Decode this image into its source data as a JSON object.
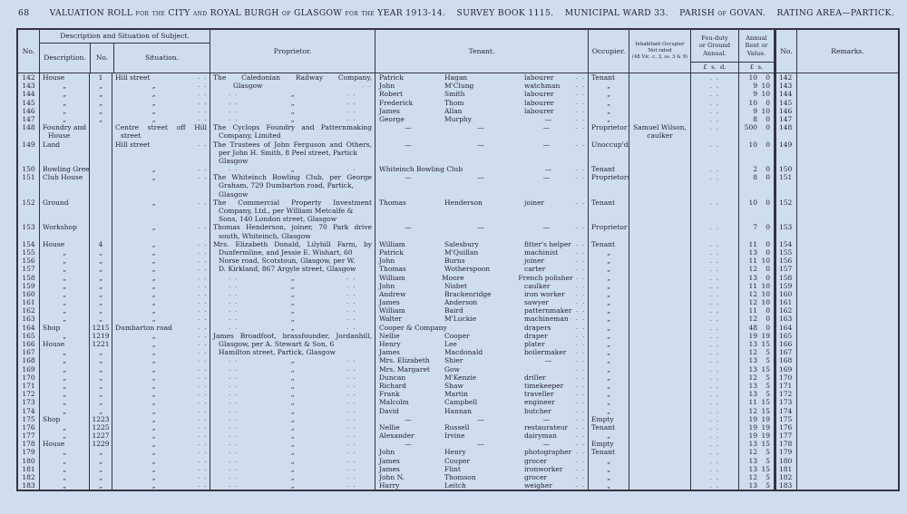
{
  "colors": {
    "page_bg": "#cfdeee",
    "ink": "#232330",
    "rule": "#34343f"
  },
  "page": {
    "page_number": "68",
    "title": "VALUATION ROLL for the CITY and ROYAL BURGH of GLASGOW for the YEAR 1913-14.",
    "survey_book": "SURVEY BOOK 1115.",
    "ward": "MUNICIPAL WARD 33.",
    "parish": "PARISH of GOVAN.",
    "rating_area": "RATING AREA—PARTICK."
  },
  "header": {
    "col_no": "No.",
    "group_desc": "Description and Situation of Subject.",
    "sub_description": "Description.",
    "sub_no": "No.",
    "sub_situation": "Situation.",
    "col_proprietor": "Proprietor.",
    "col_tenant": "Tenant.",
    "col_occupier": "Occupier.",
    "col_inhabitant": "Inhabitant Occupier\nNot rated\n(48 Vic. c. 3, ss. 3 & 9)",
    "col_feu": "Feu-duty\nor Ground\nAnnual.",
    "col_annual": "Annual\nRent or\nValue.",
    "col_no2": "No.",
    "col_remarks": "Remarks.",
    "units_feu": "£  s.  d.",
    "units_annual": "£  s."
  },
  "rows": [
    {
      "no": "142",
      "d": "House",
      "n": "1",
      "s": "Hill street",
      "sd": 1,
      "p": "The Caledonian Railway Company,",
      "pt": "j",
      "tf": "Patrick",
      "tl": "Hagan",
      "to": "labourer",
      "td": 1,
      "oc": "Tenant",
      "fd": 1,
      "rl": "10",
      "rs": "0",
      "n2": "142"
    },
    {
      "no": "143",
      "d": ",,",
      "n": ",,",
      "s": ",,",
      "sd": 1,
      "p": "Glasgow",
      "pt": "g",
      "tf": "John",
      "tl": "M'Clung",
      "to": "watchman",
      "td": 1,
      "oc": ",,",
      "fd": 1,
      "rl": "9",
      "rs": "10",
      "n2": "143"
    },
    {
      "no": "144",
      "d": ",,",
      "n": ",,",
      "s": ",,",
      "sd": 1,
      "pt": "d",
      "tf": "Robert",
      "tl": "Smith",
      "to": "labourer",
      "td": 1,
      "oc": ",,",
      "fd": 1,
      "rl": "9",
      "rs": "10",
      "n2": "144"
    },
    {
      "no": "145",
      "d": ",,",
      "n": ",,",
      "s": ",,",
      "sd": 1,
      "pt": "d",
      "tf": "Frederick",
      "tl": "Thom",
      "to": "labourer",
      "td": 1,
      "oc": ",,",
      "fd": 1,
      "rl": "10",
      "rs": "0",
      "n2": "145"
    },
    {
      "no": "146",
      "d": ",,",
      "n": ",,",
      "s": ",,",
      "sd": 1,
      "pt": "d",
      "tf": "James",
      "tl": "Allan",
      "to": "labourer",
      "td": 1,
      "oc": ",,",
      "fd": 1,
      "rl": "9",
      "rs": "10",
      "n2": "146"
    },
    {
      "no": "147",
      "d": ",,",
      "n": ",,",
      "s": ",,",
      "sd": 1,
      "pt": "d",
      "tf": "George",
      "tl": "Murphy",
      "to": "—",
      "td": 1,
      "oc": ",,",
      "fd": 1,
      "rl": "8",
      "rs": "0",
      "n2": "147"
    },
    {
      "no": "148",
      "d": "Foundry and",
      "s": "Centre street off Hill",
      "st": "j",
      "p": "The Cyclops Foundry and Patternmaking",
      "pt": "j",
      "tf": "—",
      "tl": "—",
      "to": "—",
      "td": 1,
      "oc": "Proprietor",
      "ih": "Samuel Wilson,",
      "fd": 1,
      "rl": "500",
      "rs": "0",
      "n2": "148"
    },
    {
      "d": "House",
      "dt": "i",
      "s": "street",
      "st": "i",
      "p": "Company, Limited",
      "pt": "i",
      "ih": "caulker"
    },
    {
      "no": "149",
      "d": "Land",
      "s": "Hill street",
      "sd": 1,
      "p": "The Trustees of John Ferguson and Others,",
      "pt": "j",
      "tf": "—",
      "tl": "—",
      "to": "—",
      "td": 1,
      "oc": "Unoccup'd",
      "fd": 1,
      "rl": "10",
      "rs": "0",
      "n2": "149"
    },
    {
      "p": "per John H. Smith, 8 Peel street, Partick",
      "pt": "i"
    },
    {
      "p": "Glasgow",
      "pt": "i"
    },
    {
      "no": "150",
      "d": "Bowling Green",
      "s": ",,",
      "sd": 1,
      "pt": "d",
      "tf": "Whiteinch Bowling Club",
      "to": "—",
      "td": 1,
      "oc": "Tenant",
      "fd": 1,
      "rl": "2",
      "rs": "0",
      "n2": "150"
    },
    {
      "no": "151",
      "d": "Club House",
      "s": ",,",
      "sd": 1,
      "p": "The Whiteinch Bowling Club, per George",
      "pt": "j",
      "tf": "—",
      "tl": "—",
      "to": "—",
      "td": 1,
      "oc": "Proprietors",
      "fd": 1,
      "rl": "8",
      "rs": "0",
      "n2": "151"
    },
    {
      "p": "Graham, 729 Dumbarton road, Partick,",
      "pt": "i"
    },
    {
      "p": "Glasgow",
      "pt": "i"
    },
    {
      "no": "152",
      "d": "Ground",
      "s": ",,",
      "sd": 1,
      "p": "The Commercial Property Investment",
      "pt": "j",
      "tf": "Thomas",
      "tl": "Henderson",
      "to": "joiner",
      "td": 1,
      "oc": "Tenant",
      "fd": 1,
      "rl": "10",
      "rs": "0",
      "n2": "152"
    },
    {
      "p": "Company, Ltd., per William Metcalfe &",
      "pt": "i"
    },
    {
      "p": "Sons, 140 London street, Glasgow",
      "pt": "i"
    },
    {
      "no": "153",
      "d": "Workshop",
      "s": ",,",
      "sd": 1,
      "p": "Thomas Henderson, joiner, 70 Park drive",
      "pt": "j",
      "tf": "—",
      "tl": "—",
      "to": "—",
      "td": 1,
      "oc": "Proprietor",
      "fd": 1,
      "rl": "7",
      "rs": "0",
      "n2": "153"
    },
    {
      "p": "south, Whiteinch, Glasgow",
      "pt": "i"
    },
    {
      "no": "154",
      "d": "House",
      "n": "4",
      "s": ",,",
      "sd": 1,
      "p": "Mrs. Elizabeth Donald, Lilyhill Farm, by",
      "pt": "j",
      "tf": "William",
      "tl": "Salesbury",
      "to": "fitter's helper",
      "td": 1,
      "oc": "Tenant",
      "fd": 1,
      "rl": "11",
      "rs": "0",
      "n2": "154"
    },
    {
      "no": "155",
      "d": ",,",
      "n": ",,",
      "s": ",,",
      "sd": 1,
      "p": "Dunfermline, and Jessie E. Wishart, 60",
      "pt": "i",
      "tf": "Patrick",
      "tl": "M'Quillan",
      "to": "machinist",
      "td": 1,
      "oc": ",,",
      "fd": 1,
      "rl": "13",
      "rs": "0",
      "n2": "155"
    },
    {
      "no": "156",
      "d": ",,",
      "n": ",,",
      "s": ",,",
      "sd": 1,
      "p": "Norse road, Scotstoun, Glasgow, per W.",
      "pt": "i",
      "tf": "John",
      "tl": "Burns",
      "to": "joiner",
      "td": 1,
      "oc": ",,",
      "fd": 1,
      "rl": "11",
      "rs": "10",
      "n2": "156"
    },
    {
      "no": "157",
      "d": ",,",
      "n": ",,",
      "s": ",,",
      "sd": 1,
      "p": "D. Kirkland, 867 Argyle street, Glasgow",
      "pt": "i",
      "tf": "Thomas",
      "tl": "Wotherspoon",
      "to": "carter",
      "td": 1,
      "oc": ",,",
      "fd": 1,
      "rl": "12",
      "rs": "0",
      "n2": "157"
    },
    {
      "no": "158",
      "d": ",,",
      "n": ",,",
      "s": ",,",
      "sd": 1,
      "pt": "d",
      "tf": "William",
      "tl": "Moore",
      "to": "French polisher",
      "td": 1,
      "oc": ",,",
      "fd": 1,
      "rl": "13",
      "rs": "0",
      "n2": "158"
    },
    {
      "no": "159",
      "d": ",,",
      "n": ",,",
      "s": ",,",
      "sd": 1,
      "pt": "d",
      "tf": "John",
      "tl": "Nisbet",
      "to": "caulker",
      "td": 1,
      "oc": ",,",
      "fd": 1,
      "rl": "11",
      "rs": "10",
      "n2": "159"
    },
    {
      "no": "160",
      "d": ",,",
      "n": ",,",
      "s": ",,",
      "sd": 1,
      "pt": "d",
      "tf": "Andrew",
      "tl": "Brackenridge",
      "to": "iron worker",
      "td": 1,
      "oc": ",,",
      "fd": 1,
      "rl": "12",
      "rs": "10",
      "n2": "160"
    },
    {
      "no": "161",
      "d": ",,",
      "n": ",,",
      "s": ",,",
      "sd": 1,
      "pt": "d",
      "tf": "James",
      "tl": "Anderson",
      "to": "sawyer",
      "td": 1,
      "oc": ",,",
      "fd": 1,
      "rl": "12",
      "rs": "10",
      "n2": "161"
    },
    {
      "no": "162",
      "d": ",,",
      "n": ",,",
      "s": ",,",
      "sd": 1,
      "pt": "d",
      "tf": "William",
      "tl": "Baird",
      "to": "patternmaker",
      "td": 1,
      "oc": ",,",
      "fd": 1,
      "rl": "11",
      "rs": "0",
      "n2": "162"
    },
    {
      "no": "163",
      "d": ",,",
      "n": ",,",
      "s": ",,",
      "sd": 1,
      "pt": "d",
      "tf": "Walter",
      "tl": "M'Luckie",
      "to": "machineman",
      "td": 1,
      "oc": ",,",
      "fd": 1,
      "rl": "12",
      "rs": "0",
      "n2": "163"
    },
    {
      "no": "164",
      "d": "Shop",
      "n": "1215",
      "s": "Dumbarton road",
      "sd": 1,
      "pt": "d",
      "tf": "Cooper & Company",
      "to": "drapers",
      "td": 1,
      "oc": ",,",
      "fd": 1,
      "rl": "48",
      "rs": "0",
      "n2": "164"
    },
    {
      "no": "165",
      "d": ",,",
      "n": "1219",
      "s": ",,",
      "sd": 1,
      "p": "James Broadfoot, brassfounder, Jordanhill,",
      "pt": "j",
      "tf": "Nellie",
      "tl": "Cooper",
      "to": "draper",
      "td": 1,
      "oc": ",,",
      "fd": 1,
      "rl": "19",
      "rs": "19",
      "n2": "165"
    },
    {
      "no": "166",
      "d": "House",
      "n": "1221",
      "s": ",,",
      "sd": 1,
      "p": "Glasgow, per A. Stewart & Son, 6",
      "pt": "i",
      "tf": "Henry",
      "tl": "Lee",
      "to": "plater",
      "td": 1,
      "oc": ",,",
      "fd": 1,
      "rl": "13",
      "rs": "15",
      "n2": "166"
    },
    {
      "no": "167",
      "d": ",,",
      "n": ",,",
      "s": ",,",
      "sd": 1,
      "p": "Hamilton street, Partick, Glasgow",
      "pt": "i",
      "tf": "James",
      "tl": "Macdonald",
      "to": "boilermaker",
      "td": 1,
      "oc": ",,",
      "fd": 1,
      "rl": "12",
      "rs": "5",
      "n2": "167"
    },
    {
      "no": "168",
      "d": ",,",
      "n": ",,",
      "s": ",,",
      "sd": 1,
      "pt": "d",
      "tf": "Mrs. Elizabeth",
      "tl": "Shier",
      "to": "—",
      "td": 1,
      "oc": ",,",
      "fd": 1,
      "rl": "13",
      "rs": "5",
      "n2": "168"
    },
    {
      "no": "169",
      "d": ",,",
      "n": ",,",
      "s": ",,",
      "sd": 1,
      "pt": "d",
      "tf": "Mrs. Margaret",
      "tl": "Gow",
      "to": "",
      "td": 1,
      "oc": ",,",
      "fd": 1,
      "rl": "13",
      "rs": "15",
      "n2": "169"
    },
    {
      "no": "170",
      "d": ",,",
      "n": ",,",
      "s": ",,",
      "sd": 1,
      "pt": "d",
      "tf": "Duncan",
      "tl": "M'Kenzie",
      "to": "driller",
      "td": 1,
      "oc": ",,",
      "fd": 1,
      "rl": "12",
      "rs": "5",
      "n2": "170"
    },
    {
      "no": "171",
      "d": ",,",
      "n": ",,",
      "s": ",,",
      "sd": 1,
      "pt": "d",
      "tf": "Richard",
      "tl": "Shaw",
      "to": "timekeeper",
      "td": 1,
      "oc": ",,",
      "fd": 1,
      "rl": "13",
      "rs": "5",
      "n2": "171"
    },
    {
      "no": "172",
      "d": ",,",
      "n": ",,",
      "s": ",,",
      "sd": 1,
      "pt": "d",
      "tf": "Frank",
      "tl": "Martin",
      "to": "traveller",
      "td": 1,
      "oc": ",,",
      "fd": 1,
      "rl": "13",
      "rs": "5",
      "n2": "172"
    },
    {
      "no": "173",
      "d": ",,",
      "n": ",,",
      "s": ",,",
      "sd": 1,
      "pt": "d",
      "tf": "Malcolm",
      "tl": "Campbell",
      "to": "engineer",
      "td": 1,
      "oc": ",,",
      "fd": 1,
      "rl": "11",
      "rs": "15",
      "n2": "173"
    },
    {
      "no": "174",
      "d": ",,",
      "n": ",,",
      "s": ",,",
      "sd": 1,
      "pt": "d",
      "tf": "David",
      "tl": "Hannan",
      "to": "butcher",
      "td": 1,
      "oc": ",,",
      "fd": 1,
      "rl": "12",
      "rs": "15",
      "n2": "174"
    },
    {
      "no": "175",
      "d": "Shop",
      "n": "1223",
      "s": ",,",
      "sd": 1,
      "pt": "d",
      "tf": "—",
      "tl": "—",
      "to": "—",
      "td": 1,
      "oc": "Empty",
      "fd": 1,
      "rl": "19",
      "rs": "19",
      "n2": "175"
    },
    {
      "no": "176",
      "d": ",,",
      "n": "1225",
      "s": ",,",
      "sd": 1,
      "pt": "d",
      "tf": "Nellie",
      "tl": "Russell",
      "to": "restaurateur",
      "td": 1,
      "oc": "Tenant",
      "fd": 1,
      "rl": "19",
      "rs": "19",
      "n2": "176"
    },
    {
      "no": "177",
      "d": ",,",
      "n": "1227",
      "s": ",,",
      "sd": 1,
      "pt": "d",
      "tf": "Alexander",
      "tl": "Irvine",
      "to": "dairyman",
      "td": 1,
      "oc": ",,",
      "fd": 1,
      "rl": "19",
      "rs": "19",
      "n2": "177"
    },
    {
      "no": "178",
      "d": "House",
      "n": "1229",
      "s": ",,",
      "sd": 1,
      "pt": "d",
      "tf": "—",
      "tl": "—",
      "to": "—",
      "td": 1,
      "oc": "Empty",
      "fd": 1,
      "rl": "13",
      "rs": "15",
      "n2": "178"
    },
    {
      "no": "179",
      "d": ",,",
      "n": ",,",
      "s": ",,",
      "sd": 1,
      "pt": "d",
      "tf": "John",
      "tl": "Henry",
      "to": "photographer",
      "td": 1,
      "oc": "Tenant",
      "fd": 1,
      "rl": "12",
      "rs": "5",
      "n2": "179"
    },
    {
      "no": "180",
      "d": ",,",
      "n": ",,",
      "s": ",,",
      "sd": 1,
      "pt": "d",
      "tf": "James",
      "tl": "Couper",
      "to": "grocer",
      "td": 1,
      "oc": ",,",
      "fd": 1,
      "rl": "13",
      "rs": "5",
      "n2": "180"
    },
    {
      "no": "181",
      "d": ",,",
      "n": ",,",
      "s": ",,",
      "sd": 1,
      "pt": "d",
      "tf": "James",
      "tl": "Flint",
      "to": "ironworker",
      "td": 1,
      "oc": ",,",
      "fd": 1,
      "rl": "13",
      "rs": "15",
      "n2": "181"
    },
    {
      "no": "182",
      "d": ",,",
      "n": ",,",
      "s": ",,",
      "sd": 1,
      "pt": "d",
      "tf": "John N.",
      "tl": "Thomson",
      "to": "grocer",
      "td": 1,
      "oc": ",,",
      "fd": 1,
      "rl": "12",
      "rs": "5",
      "n2": "182"
    },
    {
      "no": "183",
      "d": ",,",
      "n": ",,",
      "s": ",,",
      "sd": 1,
      "pt": "d",
      "tf": "Harry",
      "tl": "Leitch",
      "to": "weigher",
      "td": 1,
      "oc": ",,",
      "fd": 1,
      "rl": "13",
      "rs": "5",
      "n2": "183"
    }
  ]
}
